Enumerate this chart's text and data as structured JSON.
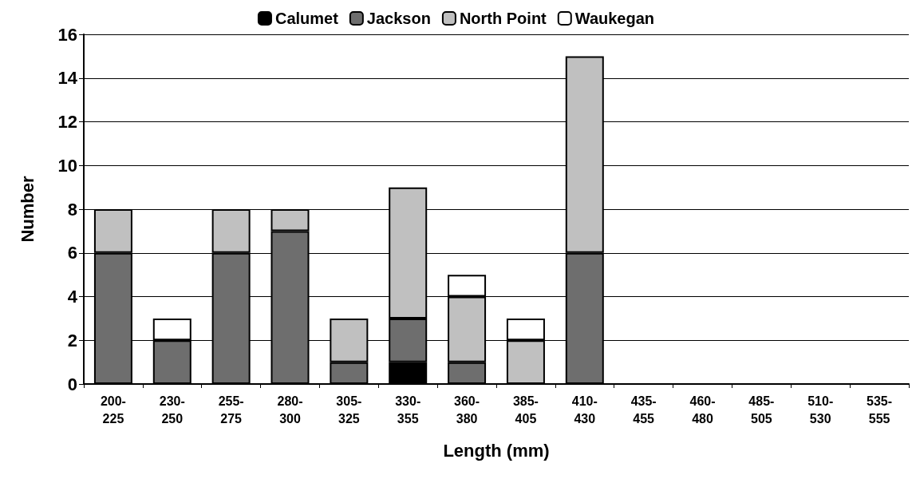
{
  "chart_data": {
    "type": "bar",
    "xlabel": "Length (mm)",
    "ylabel": "Number",
    "categories": [
      "200-\n225",
      "230-\n250",
      "255-\n275",
      "280-\n300",
      "305-\n325",
      "330-\n355",
      "360-\n380",
      "385-\n405",
      "410-\n430",
      "435-\n455",
      "460-\n480",
      "485-\n505",
      "510-\n530",
      "535-\n555"
    ],
    "stacked": true,
    "series": [
      {
        "name": "Calumet",
        "color": "#000000",
        "values": [
          0,
          0,
          0,
          0,
          0,
          1,
          0,
          0,
          0,
          0,
          0,
          0,
          0,
          0
        ]
      },
      {
        "name": "Jackson",
        "color": "#6e6e6e",
        "values": [
          6,
          2,
          6,
          7,
          1,
          2,
          1,
          0,
          6,
          0,
          0,
          0,
          0,
          0
        ]
      },
      {
        "name": "North Point",
        "color": "#c0c0c0",
        "values": [
          2,
          0,
          2,
          1,
          2,
          6,
          3,
          2,
          9,
          0,
          0,
          0,
          0,
          0
        ]
      },
      {
        "name": "Waukegan",
        "color": "#ffffff",
        "values": [
          0,
          1,
          0,
          0,
          0,
          0,
          1,
          1,
          0,
          0,
          0,
          0,
          0,
          0
        ]
      }
    ],
    "ylim": [
      0,
      16
    ],
    "yticks": [
      0,
      2,
      4,
      6,
      8,
      10,
      12,
      14,
      16
    ],
    "grid": "y",
    "legend": "top"
  }
}
